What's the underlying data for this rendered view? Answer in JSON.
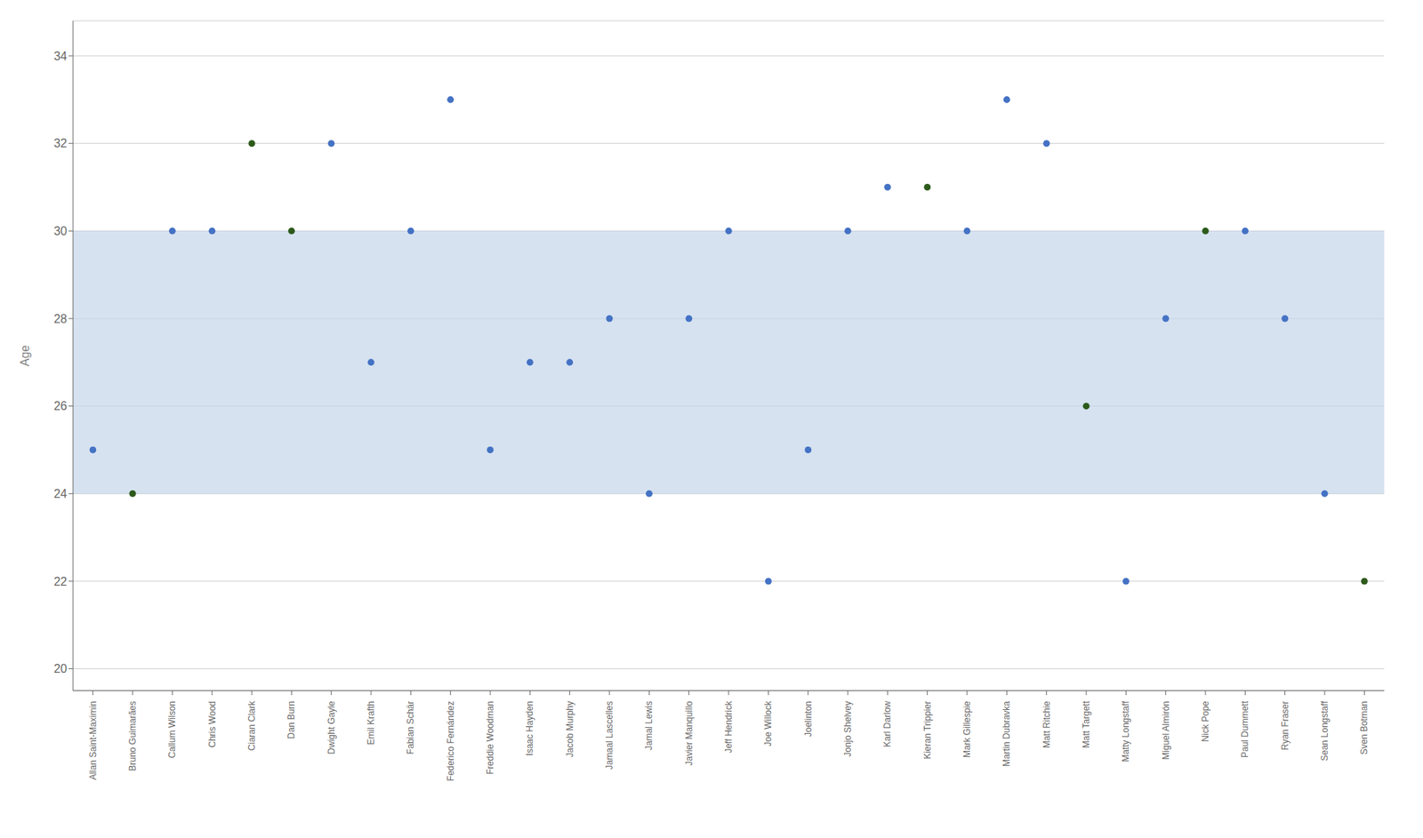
{
  "chart_data": {
    "type": "scatter",
    "categories": [
      "Allan Saint-Maximin",
      "Bruno Guimarães",
      "Callum Wilson",
      "Chris Wood",
      "Ciaran Clark",
      "Dan Burn",
      "Dwight Gayle",
      "Emil Krafth",
      "Fabian Schär",
      "Federico Fernández",
      "Freddie Woodman",
      "Isaac Hayden",
      "Jacob Murphy",
      "Jamaal Lascelles",
      "Jamal Lewis",
      "Javier Manquillo",
      "Jeff Hendrick",
      "Joe Willock",
      "Joelinton",
      "Jonjo Shelvey",
      "Karl Darlow",
      "Kieran Trippier",
      "Mark Gillespie",
      "Martin Dubravka",
      "Matt Ritchie",
      "Matt Targett",
      "Matty Longstaff",
      "Miguel Almirón",
      "Nick Pope",
      "Paul Dummett",
      "Ryan Fraser",
      "Sean Longstaff",
      "Sven Botman"
    ],
    "values": [
      25,
      24,
      30,
      30,
      32,
      30,
      32,
      27,
      30,
      33,
      25,
      27,
      27,
      28,
      24,
      28,
      30,
      22,
      25,
      30,
      31,
      31,
      30,
      33,
      32,
      26,
      22,
      28,
      30,
      30,
      28,
      24,
      22
    ],
    "colors": [
      "#4472C4",
      "#2D5A1B",
      "#4472C4",
      "#4472C4",
      "#2D5A1B",
      "#2D5A1B",
      "#4472C4",
      "#4472C4",
      "#4472C4",
      "#4472C4",
      "#4472C4",
      "#4472C4",
      "#4472C4",
      "#4472C4",
      "#4472C4",
      "#4472C4",
      "#4472C4",
      "#4472C4",
      "#4472C4",
      "#4472C4",
      "#4472C4",
      "#2D5A1B",
      "#4472C4",
      "#4472C4",
      "#4472C4",
      "#2D5A1B",
      "#4472C4",
      "#4472C4",
      "#2D5A1B",
      "#4472C4",
      "#4472C4",
      "#4472C4",
      "#2D5A1B"
    ],
    "ylabel": "Age",
    "ylim": [
      19.5,
      34.8
    ],
    "yticks": [
      20,
      22,
      24,
      26,
      28,
      30,
      32,
      34
    ],
    "grid": true,
    "band": {
      "range": [
        24,
        30
      ],
      "color": "#C5D5EA"
    }
  }
}
